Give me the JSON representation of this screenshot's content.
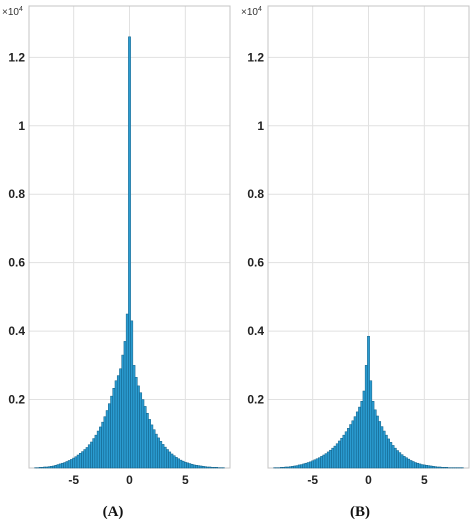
{
  "figure": {
    "panel_labels": [
      "(A)",
      "(B)"
    ]
  },
  "colors": {
    "bar_fill": "#2a9bd0",
    "bar_edge": "#0f5e86",
    "grid": "#e1e1e1"
  },
  "chart_data": [
    {
      "type": "bar",
      "panel": "(A)",
      "exponent_label": "×10",
      "exponent_power": "4",
      "xlim": [
        -9,
        9
      ],
      "ylim": [
        0,
        13500
      ],
      "xticks": [
        -5,
        0,
        5
      ],
      "xtick_labels": [
        "-5",
        "0",
        "5"
      ],
      "yticks": [
        2000,
        4000,
        6000,
        8000,
        10000,
        12000
      ],
      "ytick_labels": [
        "0.2",
        "0.4",
        "0.6",
        "0.8",
        "1",
        "1.2"
      ],
      "grid": true,
      "bin_width": 0.2,
      "x": [
        -8.4,
        -8.2,
        -8.0,
        -7.8,
        -7.6,
        -7.4,
        -7.2,
        -7.0,
        -6.8,
        -6.6,
        -6.4,
        -6.2,
        -6.0,
        -5.8,
        -5.6,
        -5.4,
        -5.2,
        -5.0,
        -4.8,
        -4.6,
        -4.4,
        -4.2,
        -4.0,
        -3.8,
        -3.6,
        -3.4,
        -3.2,
        -3.0,
        -2.8,
        -2.6,
        -2.4,
        -2.2,
        -2.0,
        -1.8,
        -1.6,
        -1.4,
        -1.2,
        -1.0,
        -0.8,
        -0.6,
        -0.4,
        -0.2,
        0.0,
        0.2,
        0.4,
        0.6,
        0.8,
        1.0,
        1.2,
        1.4,
        1.6,
        1.8,
        2.0,
        2.2,
        2.4,
        2.6,
        2.8,
        3.0,
        3.2,
        3.4,
        3.6,
        3.8,
        4.0,
        4.2,
        4.4,
        4.6,
        4.8,
        5.0,
        5.2,
        5.4,
        5.6,
        5.8,
        6.0,
        6.2,
        6.4,
        6.6,
        6.8,
        7.0,
        7.2,
        7.4,
        7.6,
        7.8,
        8.0,
        8.2,
        8.4
      ],
      "values": [
        10,
        10,
        20,
        20,
        30,
        30,
        40,
        50,
        60,
        80,
        100,
        120,
        140,
        160,
        190,
        220,
        250,
        290,
        330,
        380,
        430,
        480,
        540,
        600,
        680,
        760,
        860,
        960,
        1080,
        1200,
        1340,
        1500,
        1680,
        1880,
        2100,
        2330,
        2550,
        2700,
        2900,
        3300,
        3700,
        4500,
        12600,
        4300,
        3000,
        2650,
        2400,
        2200,
        2000,
        1800,
        1600,
        1420,
        1260,
        1120,
        990,
        880,
        780,
        690,
        610,
        540,
        470,
        410,
        360,
        310,
        270,
        230,
        200,
        170,
        150,
        130,
        110,
        90,
        80,
        70,
        60,
        50,
        40,
        30,
        30,
        20,
        20,
        20,
        10,
        10,
        10
      ]
    },
    {
      "type": "bar",
      "panel": "(B)",
      "exponent_label": "×10",
      "exponent_power": "4",
      "xlim": [
        -9,
        9
      ],
      "ylim": [
        0,
        13500
      ],
      "xticks": [
        -5,
        0,
        5
      ],
      "xtick_labels": [
        "-5",
        "0",
        "5"
      ],
      "yticks": [
        2000,
        4000,
        6000,
        8000,
        10000,
        12000
      ],
      "ytick_labels": [
        "0.2",
        "0.4",
        "0.6",
        "0.8",
        "1",
        "1.2"
      ],
      "grid": true,
      "bin_width": 0.2,
      "x": [
        -8.4,
        -8.2,
        -8.0,
        -7.8,
        -7.6,
        -7.4,
        -7.2,
        -7.0,
        -6.8,
        -6.6,
        -6.4,
        -6.2,
        -6.0,
        -5.8,
        -5.6,
        -5.4,
        -5.2,
        -5.0,
        -4.8,
        -4.6,
        -4.4,
        -4.2,
        -4.0,
        -3.8,
        -3.6,
        -3.4,
        -3.2,
        -3.0,
        -2.8,
        -2.6,
        -2.4,
        -2.2,
        -2.0,
        -1.8,
        -1.6,
        -1.4,
        -1.2,
        -1.0,
        -0.8,
        -0.6,
        -0.4,
        -0.2,
        0.0,
        0.2,
        0.4,
        0.6,
        0.8,
        1.0,
        1.2,
        1.4,
        1.6,
        1.8,
        2.0,
        2.2,
        2.4,
        2.6,
        2.8,
        3.0,
        3.2,
        3.4,
        3.6,
        3.8,
        4.0,
        4.2,
        4.4,
        4.6,
        4.8,
        5.0,
        5.2,
        5.4,
        5.6,
        5.8,
        6.0,
        6.2,
        6.4,
        6.6,
        6.8,
        7.0,
        7.2,
        7.4,
        7.6,
        7.8,
        8.0,
        8.2,
        8.4
      ],
      "values": [
        10,
        10,
        10,
        20,
        20,
        30,
        30,
        40,
        50,
        60,
        70,
        90,
        100,
        120,
        140,
        160,
        180,
        210,
        240,
        270,
        300,
        340,
        380,
        420,
        470,
        520,
        580,
        640,
        710,
        790,
        870,
        960,
        1060,
        1160,
        1270,
        1380,
        1500,
        1640,
        1780,
        1950,
        2250,
        3000,
        3850,
        2550,
        1950,
        1700,
        1520,
        1360,
        1210,
        1080,
        960,
        850,
        750,
        660,
        580,
        510,
        450,
        390,
        340,
        300,
        260,
        220,
        190,
        160,
        140,
        120,
        100,
        90,
        80,
        70,
        60,
        50,
        40,
        30,
        30,
        20,
        20,
        20,
        10,
        10,
        10,
        10,
        10,
        10,
        10
      ]
    }
  ]
}
